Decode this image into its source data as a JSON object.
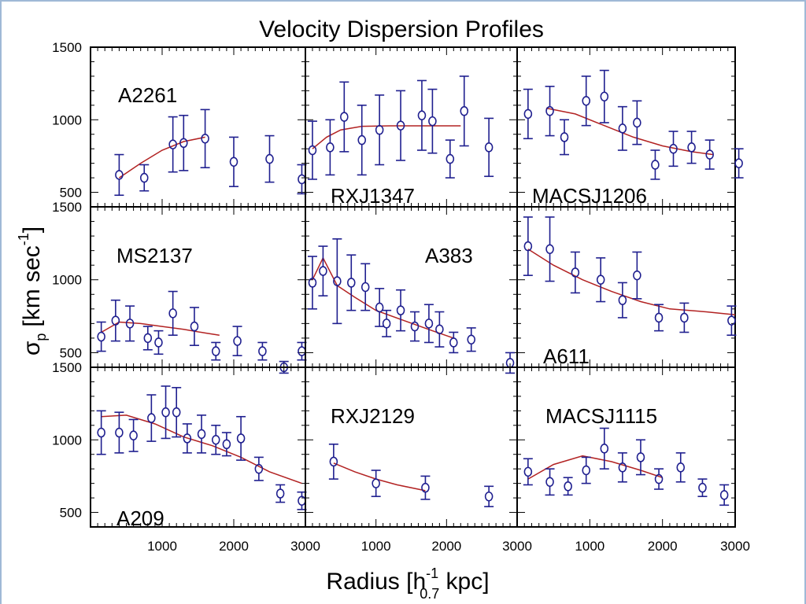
{
  "chart_data": {
    "type": "scatter",
    "title": "Velocity Dispersion Profiles",
    "xlabel": {
      "main": "Radius [h",
      "sup": "-1",
      "sub": "0.7",
      "rest": " kpc]"
    },
    "ylabel": {
      "sigma": "σ",
      "sub": "p",
      "main": "[km sec",
      "sup": "-1",
      "rest": "]"
    },
    "xlim": [
      0,
      3000
    ],
    "ylim": [
      400,
      1500
    ],
    "x_ticks": [
      "1000",
      "2000",
      "3000"
    ],
    "y_ticks": [
      "500",
      "1000",
      "1500"
    ],
    "grid": false,
    "colors": {
      "points": "#1f1f8f",
      "fit": "#b22222",
      "axes": "#000000"
    },
    "panels": [
      {
        "name": "A2261",
        "points": [
          [
            400,
            620,
            140
          ],
          [
            750,
            600,
            90
          ],
          [
            1150,
            830,
            190
          ],
          [
            1300,
            840,
            190
          ],
          [
            1600,
            870,
            200
          ],
          [
            2000,
            710,
            170
          ],
          [
            2500,
            730,
            160
          ],
          [
            2950,
            590,
            100
          ]
        ],
        "fit": [
          [
            400,
            600
          ],
          [
            700,
            700
          ],
          [
            1000,
            790
          ],
          [
            1300,
            850
          ],
          [
            1600,
            880
          ]
        ]
      },
      {
        "name": "RXJ1347",
        "points": [
          [
            100,
            790,
            200
          ],
          [
            350,
            810,
            190
          ],
          [
            550,
            1020,
            240
          ],
          [
            800,
            860,
            240
          ],
          [
            1050,
            930,
            240
          ],
          [
            1350,
            960,
            240
          ],
          [
            1650,
            1030,
            240
          ],
          [
            1800,
            990,
            220
          ],
          [
            2050,
            730,
            130
          ],
          [
            2250,
            1060,
            240
          ],
          [
            2600,
            810,
            200
          ]
        ],
        "fit": [
          [
            100,
            800
          ],
          [
            300,
            880
          ],
          [
            500,
            930
          ],
          [
            800,
            955
          ],
          [
            1200,
            958
          ],
          [
            1700,
            958
          ],
          [
            2200,
            958
          ]
        ]
      },
      {
        "name": "MACSJ1206",
        "points": [
          [
            150,
            1040,
            170
          ],
          [
            450,
            1060,
            170
          ],
          [
            650,
            880,
            120
          ],
          [
            950,
            1130,
            170
          ],
          [
            1200,
            1160,
            180
          ],
          [
            1450,
            940,
            150
          ],
          [
            1650,
            980,
            150
          ],
          [
            1900,
            690,
            100
          ],
          [
            2150,
            800,
            120
          ],
          [
            2400,
            810,
            110
          ],
          [
            2650,
            760,
            100
          ],
          [
            3050,
            700,
            100
          ]
        ],
        "fit": [
          [
            400,
            1080
          ],
          [
            800,
            1040
          ],
          [
            1200,
            960
          ],
          [
            1600,
            880
          ],
          [
            2000,
            820
          ],
          [
            2400,
            780
          ],
          [
            2700,
            760
          ]
        ]
      },
      {
        "name": "MS2137",
        "points": [
          [
            150,
            610,
            100
          ],
          [
            350,
            720,
            140
          ],
          [
            550,
            700,
            120
          ],
          [
            800,
            600,
            80
          ],
          [
            950,
            570,
            80
          ],
          [
            1150,
            770,
            150
          ],
          [
            1450,
            680,
            130
          ],
          [
            1750,
            510,
            60
          ],
          [
            2050,
            580,
            100
          ],
          [
            2400,
            510,
            60
          ],
          [
            2700,
            400,
            40
          ],
          [
            2950,
            510,
            60
          ]
        ],
        "fit": [
          [
            150,
            640
          ],
          [
            400,
            710
          ],
          [
            700,
            700
          ],
          [
            1000,
            680
          ],
          [
            1300,
            660
          ],
          [
            1600,
            635
          ],
          [
            1800,
            620
          ]
        ]
      },
      {
        "name": "A383",
        "points": [
          [
            100,
            980,
            180
          ],
          [
            250,
            1060,
            170
          ],
          [
            450,
            990,
            290
          ],
          [
            650,
            980,
            190
          ],
          [
            850,
            950,
            160
          ],
          [
            1050,
            810,
            130
          ],
          [
            1150,
            700,
            90
          ],
          [
            1350,
            790,
            140
          ],
          [
            1550,
            680,
            100
          ],
          [
            1750,
            700,
            130
          ],
          [
            1900,
            660,
            120
          ],
          [
            2100,
            570,
            70
          ],
          [
            2350,
            590,
            80
          ],
          [
            2900,
            430,
            70
          ]
        ],
        "fit": [
          [
            100,
            1000
          ],
          [
            250,
            1150
          ],
          [
            450,
            960
          ],
          [
            700,
            880
          ],
          [
            1000,
            790
          ],
          [
            1400,
            720
          ],
          [
            1800,
            650
          ],
          [
            2100,
            600
          ]
        ]
      },
      {
        "name": "A611",
        "points": [
          [
            150,
            1230,
            200
          ],
          [
            450,
            1210,
            220
          ],
          [
            800,
            1050,
            140
          ],
          [
            1150,
            1000,
            150
          ],
          [
            1450,
            860,
            120
          ],
          [
            1650,
            1030,
            160
          ],
          [
            1950,
            740,
            90
          ],
          [
            2300,
            740,
            100
          ],
          [
            2950,
            720,
            100
          ]
        ],
        "fit": [
          [
            150,
            1210
          ],
          [
            500,
            1100
          ],
          [
            900,
            1000
          ],
          [
            1300,
            920
          ],
          [
            1700,
            850
          ],
          [
            2100,
            800
          ],
          [
            2600,
            780
          ],
          [
            3000,
            760
          ]
        ]
      },
      {
        "name": "A209",
        "points": [
          [
            150,
            1050,
            150
          ],
          [
            400,
            1050,
            140
          ],
          [
            600,
            1030,
            110
          ],
          [
            850,
            1150,
            160
          ],
          [
            1050,
            1190,
            180
          ],
          [
            1200,
            1190,
            170
          ],
          [
            1350,
            1010,
            100
          ],
          [
            1550,
            1040,
            130
          ],
          [
            1750,
            1000,
            100
          ],
          [
            1900,
            970,
            80
          ],
          [
            2100,
            1010,
            150
          ],
          [
            2350,
            800,
            80
          ],
          [
            2650,
            630,
            60
          ],
          [
            2950,
            580,
            60
          ]
        ],
        "fit": [
          [
            150,
            1160
          ],
          [
            500,
            1170
          ],
          [
            900,
            1110
          ],
          [
            1300,
            1020
          ],
          [
            1700,
            960
          ],
          [
            2100,
            880
          ],
          [
            2500,
            780
          ],
          [
            2950,
            700
          ]
        ]
      },
      {
        "name": "RXJ2129",
        "points": [
          [
            400,
            850,
            120
          ],
          [
            1000,
            700,
            90
          ],
          [
            1700,
            670,
            80
          ],
          [
            2600,
            610,
            70
          ]
        ],
        "fit": [
          [
            400,
            840
          ],
          [
            700,
            780
          ],
          [
            1000,
            730
          ],
          [
            1300,
            690
          ],
          [
            1700,
            650
          ]
        ]
      },
      {
        "name": "MACSJ1115",
        "points": [
          [
            150,
            780,
            90
          ],
          [
            450,
            710,
            90
          ],
          [
            700,
            680,
            60
          ],
          [
            950,
            790,
            90
          ],
          [
            1200,
            940,
            140
          ],
          [
            1450,
            810,
            100
          ],
          [
            1700,
            880,
            120
          ],
          [
            1950,
            730,
            70
          ],
          [
            2250,
            810,
            100
          ],
          [
            2550,
            670,
            60
          ],
          [
            2850,
            620,
            70
          ]
        ],
        "fit": [
          [
            150,
            730
          ],
          [
            500,
            830
          ],
          [
            900,
            890
          ],
          [
            1300,
            850
          ],
          [
            1700,
            790
          ],
          [
            2000,
            740
          ]
        ]
      }
    ]
  }
}
